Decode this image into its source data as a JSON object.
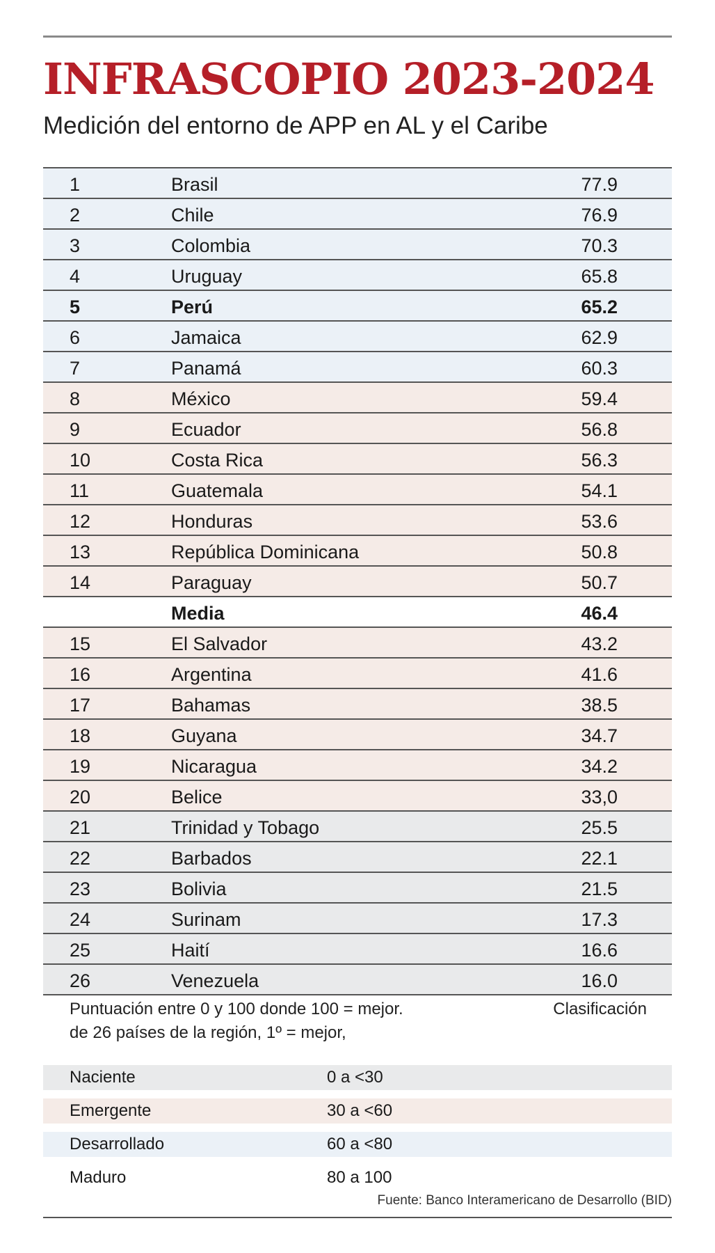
{
  "header": {
    "title": "INFRASCOPIO 2023-2024",
    "subtitle": "Medición del entorno de APP en AL y el Caribe"
  },
  "colors": {
    "title": "#b51f28",
    "desarrollado": "#ebf1f7",
    "emergente": "#f5ebe7",
    "naciente": "#e9eaeb"
  },
  "ranking": [
    {
      "rank": "1",
      "country": "Brasil",
      "score": "77.9",
      "tier": "desarrollado"
    },
    {
      "rank": "2",
      "country": "Chile",
      "score": "76.9",
      "tier": "desarrollado"
    },
    {
      "rank": "3",
      "country": "Colombia",
      "score": "70.3",
      "tier": "desarrollado"
    },
    {
      "rank": "4",
      "country": "Uruguay",
      "score": "65.8",
      "tier": "desarrollado"
    },
    {
      "rank": "5",
      "country": "Perú",
      "score": "65.2",
      "tier": "desarrollado",
      "bold": true
    },
    {
      "rank": "6",
      "country": "Jamaica",
      "score": "62.9",
      "tier": "desarrollado"
    },
    {
      "rank": "7",
      "country": "Panamá",
      "score": "60.3",
      "tier": "desarrollado"
    },
    {
      "rank": "8",
      "country": "México",
      "score": "59.4",
      "tier": "emergente"
    },
    {
      "rank": "9",
      "country": "Ecuador",
      "score": "56.8",
      "tier": "emergente"
    },
    {
      "rank": "10",
      "country": "Costa Rica",
      "score": "56.3",
      "tier": "emergente"
    },
    {
      "rank": "11",
      "country": "Guatemala",
      "score": "54.1",
      "tier": "emergente"
    },
    {
      "rank": "12",
      "country": "Honduras",
      "score": "53.6",
      "tier": "emergente"
    },
    {
      "rank": "13",
      "country": "República Dominicana",
      "score": "50.8",
      "tier": "emergente"
    },
    {
      "rank": "14",
      "country": "Paraguay",
      "score": "50.7",
      "tier": "emergente"
    },
    {
      "rank": "",
      "country": "Media",
      "score": "46.4",
      "tier": "media",
      "bold": true
    },
    {
      "rank": "15",
      "country": "El Salvador",
      "score": "43.2",
      "tier": "emergente"
    },
    {
      "rank": "16",
      "country": "Argentina",
      "score": "41.6",
      "tier": "emergente"
    },
    {
      "rank": "17",
      "country": "Bahamas",
      "score": "38.5",
      "tier": "emergente"
    },
    {
      "rank": "18",
      "country": "Guyana",
      "score": "34.7",
      "tier": "emergente"
    },
    {
      "rank": "19",
      "country": "Nicaragua",
      "score": "34.2",
      "tier": "emergente"
    },
    {
      "rank": "20",
      "country": "Belice",
      "score": "33,0",
      "tier": "emergente"
    },
    {
      "rank": "21",
      "country": "Trinidad y Tobago",
      "score": "25.5",
      "tier": "naciente"
    },
    {
      "rank": "22",
      "country": "Barbados",
      "score": "22.1",
      "tier": "naciente"
    },
    {
      "rank": "23",
      "country": "Bolivia",
      "score": "21.5",
      "tier": "naciente"
    },
    {
      "rank": "24",
      "country": "Surinam",
      "score": "17.3",
      "tier": "naciente"
    },
    {
      "rank": "25",
      "country": "Haití",
      "score": "16.6",
      "tier": "naciente"
    },
    {
      "rank": "26",
      "country": "Venezuela",
      "score": "16.0",
      "tier": "naciente"
    }
  ],
  "notes": {
    "line1": "Puntuación entre 0 y 100 donde 100 = mejor.",
    "line2": "de 26 países de la región, 1º = mejor,",
    "clasificacion_title": "Clasificación"
  },
  "legend": [
    {
      "name": "Naciente",
      "range": "0 a <30",
      "tier": "naciente"
    },
    {
      "name": "Emergente",
      "range": "30 a <60",
      "tier": "emergente"
    },
    {
      "name": "Desarrollado",
      "range": "60 a <80",
      "tier": "desarrollado"
    },
    {
      "name": "Maduro",
      "range": "80 a 100",
      "tier": "plain"
    }
  ],
  "source": "Fuente: Banco Interamericano de Desarrollo (BID)"
}
